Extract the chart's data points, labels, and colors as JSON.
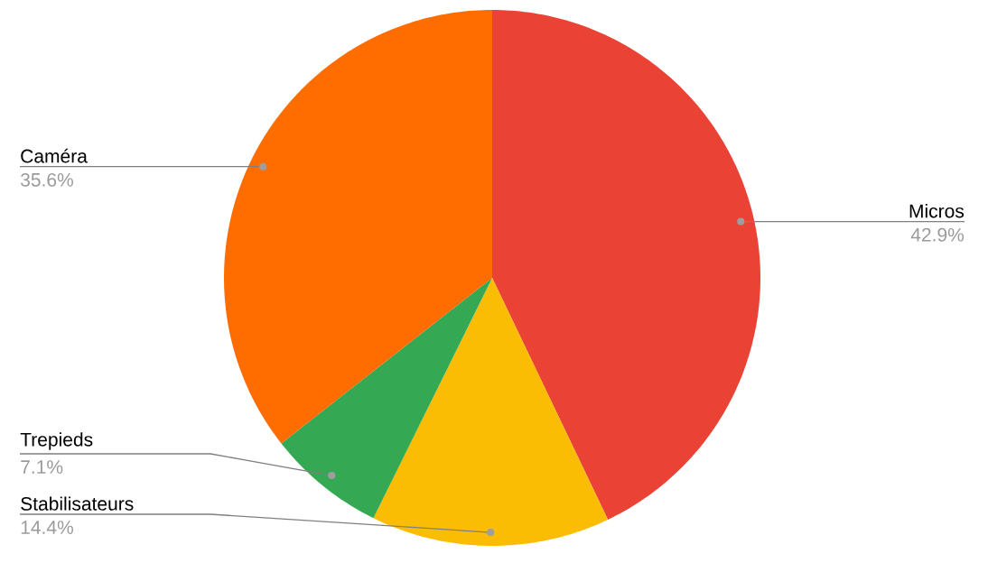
{
  "chart_data": {
    "type": "pie",
    "categories": [
      "Micros",
      "Stabilisateurs",
      "Trepieds",
      "Caméra"
    ],
    "values": [
      42.9,
      14.4,
      7.1,
      35.6
    ],
    "colors": [
      "#ea4335",
      "#fbbc04",
      "#34a853",
      "#ff6d01"
    ],
    "value_labels": [
      "42.9%",
      "14.4%",
      "7.1%",
      "35.6%"
    ]
  }
}
